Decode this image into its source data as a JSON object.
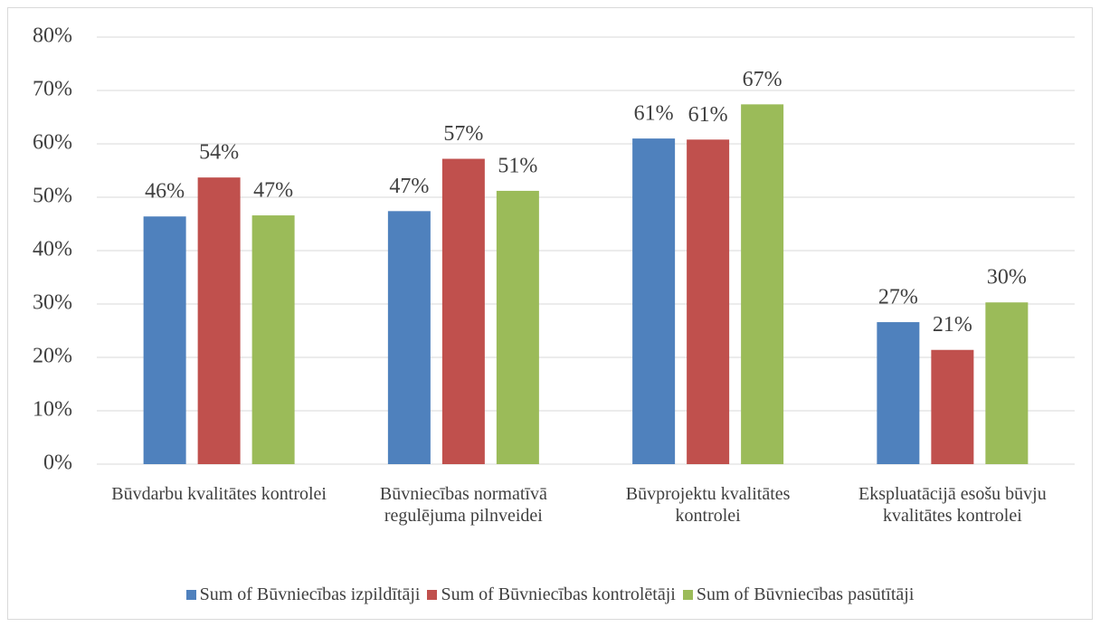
{
  "chart_data": {
    "type": "bar",
    "categories": [
      "Būvdarbu kvalitātes kontrolei",
      "Būvniecības normatīvā regulējuma pilnveidei",
      "Būvprojektu kvalitātes kontrolei",
      "Ekspluatācijā esošu būvju kvalitātes kontrolei"
    ],
    "series": [
      {
        "name": "Sum of Būvniecības izpildītāji",
        "color": "#4f81bd",
        "values": [
          46.4,
          47.4,
          61.0,
          26.6
        ],
        "value_labels": [
          "46%",
          "47%",
          "61%",
          "27%"
        ]
      },
      {
        "name": "Sum of Būvniecības kontrolētāji",
        "color": "#c0504d",
        "values": [
          53.7,
          57.2,
          60.8,
          21.4
        ],
        "value_labels": [
          "54%",
          "57%",
          "61%",
          "21%"
        ]
      },
      {
        "name": "Sum of Būvniecības pasūtītāji",
        "color": "#9bbb59",
        "values": [
          46.6,
          51.2,
          67.4,
          30.3
        ],
        "value_labels": [
          "47%",
          "51%",
          "67%",
          "30%"
        ]
      }
    ],
    "ylim": [
      0,
      80
    ],
    "yticks": [
      {
        "value": 0,
        "label": "0%"
      },
      {
        "value": 10,
        "label": "10%"
      },
      {
        "value": 20,
        "label": "20%"
      },
      {
        "value": 30,
        "label": "30%"
      },
      {
        "value": 40,
        "label": "40%"
      },
      {
        "value": 50,
        "label": "50%"
      },
      {
        "value": 60,
        "label": "60%"
      },
      {
        "value": 70,
        "label": "70%"
      },
      {
        "value": 80,
        "label": "80%"
      }
    ],
    "grid": true,
    "legend": "bottom"
  }
}
